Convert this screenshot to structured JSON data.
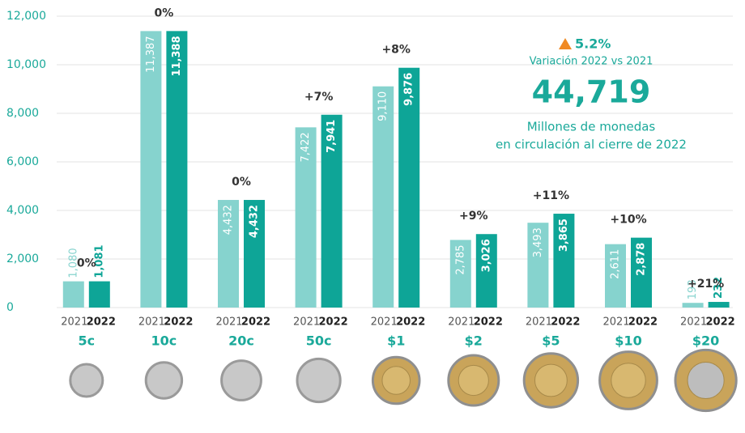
{
  "chart_data": {
    "type": "bar",
    "categories": [
      "5c",
      "10c",
      "20c",
      "50c",
      "$1",
      "$2",
      "$5",
      "$10",
      "$20"
    ],
    "series": [
      {
        "name": "2021",
        "color": "#86d3ce",
        "values": [
          1080,
          11387,
          4432,
          7422,
          9110,
          2785,
          3493,
          2611,
          193
        ],
        "value_labels": [
          "1,080",
          "11,387",
          "4,432",
          "7,422",
          "9,110",
          "2,785",
          "3,493",
          "2,611",
          "193"
        ]
      },
      {
        "name": "2022",
        "color": "#0ea597",
        "values": [
          1081,
          11388,
          4432,
          7941,
          9876,
          3026,
          3865,
          2878,
          232
        ],
        "value_labels": [
          "1,081",
          "11,388",
          "4,432",
          "7,941",
          "9,876",
          "3,026",
          "3,865",
          "2,878",
          "232"
        ]
      }
    ],
    "changes": [
      "0%",
      "0%",
      "0%",
      "+7%",
      "+8%",
      "+9%",
      "+11%",
      "+10%",
      "+21%"
    ],
    "ylim": [
      0,
      12000
    ],
    "yticks": [
      0,
      {
        "value": 2000,
        "label": "2,000"
      },
      {
        "value": 4000,
        "label": "4,000"
      },
      {
        "value": 6000,
        "label": "6,000"
      },
      {
        "value": 8000,
        "label": "8,000"
      },
      {
        "value": 10000,
        "label": "10,000"
      },
      {
        "value": 12000,
        "label": "12,000"
      }
    ],
    "grid": true,
    "annotations": {
      "change": "5.2%",
      "change_label": "Variación 2022 vs 2021",
      "total": "44,719",
      "total_line1": "Millones de monedas",
      "total_line2": "en circulación al cierre de 2022"
    }
  }
}
